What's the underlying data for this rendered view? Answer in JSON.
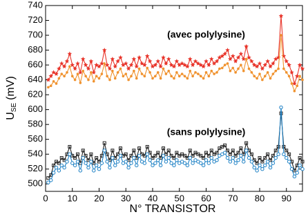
{
  "chart_data": {
    "type": "line",
    "x_label": "N° TRANSISTOR",
    "y_label": {
      "main": "U",
      "sub": "SE",
      "unit": "(mV)"
    },
    "annotations": [
      {
        "text": "(avec polylysine)",
        "x": 60,
        "y": 700
      },
      {
        "text": "(sans polylysine)",
        "x": 60,
        "y": 569
      }
    ],
    "xlim": [
      0,
      96
    ],
    "ylim": [
      490,
      740
    ],
    "xticks": [
      0,
      10,
      20,
      30,
      40,
      50,
      60,
      70,
      80,
      90
    ],
    "yticks": [
      500,
      520,
      540,
      560,
      580,
      600,
      620,
      640,
      660,
      680,
      700,
      720,
      740
    ],
    "x": [
      1,
      2,
      3,
      4,
      5,
      6,
      7,
      8,
      9,
      10,
      11,
      12,
      13,
      14,
      15,
      16,
      17,
      18,
      19,
      20,
      21,
      22,
      23,
      24,
      25,
      26,
      27,
      28,
      29,
      30,
      31,
      32,
      33,
      34,
      35,
      36,
      37,
      38,
      39,
      40,
      41,
      42,
      43,
      44,
      45,
      46,
      47,
      48,
      49,
      50,
      51,
      52,
      53,
      54,
      55,
      56,
      57,
      58,
      59,
      60,
      61,
      62,
      63,
      64,
      65,
      66,
      67,
      68,
      69,
      70,
      71,
      72,
      73,
      74,
      75,
      76,
      77,
      78,
      79,
      80,
      81,
      82,
      83,
      84,
      85,
      86,
      87,
      88,
      89,
      90,
      91,
      92,
      93,
      94,
      95,
      96
    ],
    "series": [
      {
        "color": "#e8342a",
        "marker": "star",
        "values": [
          640,
          645,
          650,
          648,
          655,
          662,
          658,
          665,
          675,
          660,
          655,
          662,
          650,
          668,
          660,
          655,
          665,
          650,
          660,
          658,
          662,
          680,
          660,
          655,
          668,
          658,
          665,
          670,
          660,
          662,
          655,
          660,
          668,
          658,
          670,
          662,
          660,
          672,
          665,
          658,
          660,
          665,
          658,
          670,
          662,
          668,
          660,
          658,
          665,
          660,
          662,
          660,
          658,
          668,
          660,
          665,
          662,
          660,
          658,
          665,
          660,
          668,
          662,
          665,
          670,
          672,
          675,
          680,
          668,
          672,
          665,
          670,
          675,
          668,
          685,
          670,
          665,
          660,
          658,
          662,
          655,
          660,
          665,
          658,
          662,
          668,
          670,
          726,
          672,
          665,
          660,
          650,
          635,
          645,
          660,
          655
        ]
      },
      {
        "color": "#f0922e",
        "marker": "dot",
        "values": [
          630,
          632,
          638,
          635,
          642,
          648,
          645,
          650,
          658,
          645,
          640,
          648,
          636,
          652,
          645,
          640,
          650,
          638,
          645,
          642,
          648,
          662,
          645,
          640,
          652,
          642,
          650,
          655,
          645,
          648,
          640,
          645,
          652,
          642,
          655,
          648,
          645,
          656,
          650,
          642,
          645,
          650,
          642,
          655,
          648,
          652,
          645,
          642,
          650,
          645,
          648,
          645,
          642,
          652,
          645,
          650,
          648,
          645,
          642,
          650,
          645,
          652,
          648,
          650,
          655,
          656,
          660,
          662,
          652,
          656,
          650,
          655,
          660,
          652,
          668,
          655,
          650,
          645,
          642,
          648,
          640,
          645,
          650,
          642,
          648,
          652,
          655,
          700,
          655,
          650,
          645,
          635,
          625,
          632,
          645,
          640
        ]
      },
      {
        "color": "#222222",
        "marker": "square",
        "values": [
          508,
          512,
          525,
          530,
          528,
          535,
          532,
          540,
          550,
          538,
          535,
          540,
          528,
          545,
          538,
          532,
          540,
          528,
          535,
          530,
          538,
          555,
          540,
          532,
          545,
          535,
          540,
          548,
          538,
          540,
          532,
          538,
          545,
          535,
          548,
          540,
          538,
          550,
          542,
          535,
          538,
          542,
          535,
          548,
          540,
          545,
          538,
          535,
          542,
          538,
          540,
          538,
          535,
          545,
          538,
          542,
          540,
          538,
          535,
          542,
          538,
          545,
          540,
          542,
          548,
          550,
          552,
          545,
          540,
          545,
          538,
          542,
          548,
          540,
          555,
          545,
          540,
          532,
          528,
          535,
          530,
          535,
          540,
          532,
          538,
          545,
          550,
          595,
          550,
          545,
          540,
          530,
          518,
          525,
          535,
          530
        ]
      },
      {
        "color": "#1a7fc4",
        "marker": "circle",
        "values": [
          502,
          505,
          515,
          522,
          518,
          525,
          522,
          530,
          540,
          528,
          525,
          530,
          518,
          535,
          528,
          522,
          530,
          518,
          525,
          520,
          528,
          545,
          530,
          522,
          535,
          525,
          530,
          538,
          528,
          530,
          522,
          528,
          535,
          525,
          538,
          530,
          528,
          540,
          532,
          525,
          528,
          532,
          525,
          538,
          530,
          535,
          528,
          525,
          532,
          528,
          530,
          528,
          525,
          535,
          528,
          532,
          530,
          528,
          525,
          532,
          528,
          535,
          530,
          532,
          538,
          540,
          542,
          535,
          530,
          535,
          528,
          532,
          538,
          530,
          545,
          535,
          530,
          522,
          518,
          525,
          520,
          525,
          530,
          522,
          528,
          535,
          540,
          603,
          540,
          535,
          530,
          520,
          510,
          515,
          525,
          520
        ]
      }
    ]
  }
}
